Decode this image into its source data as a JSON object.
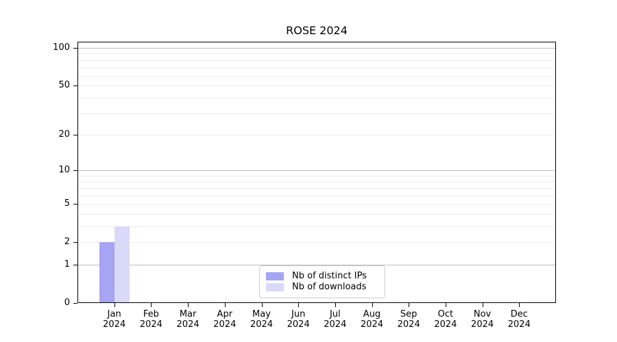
{
  "chart_data": {
    "type": "bar",
    "title": "ROSE 2024",
    "categories": [
      "Jan 2024",
      "Feb 2024",
      "Mar 2024",
      "Apr 2024",
      "May 2024",
      "Jun 2024",
      "Jul 2024",
      "Aug 2024",
      "Sep 2024",
      "Oct 2024",
      "Nov 2024",
      "Dec 2024"
    ],
    "series": [
      {
        "name": "Nb of distinct IPs",
        "color": "#a5a5f4",
        "values": [
          2,
          0,
          0,
          0,
          0,
          0,
          0,
          0,
          0,
          0,
          0,
          0
        ]
      },
      {
        "name": "Nb of downloads",
        "color": "#d9d9f8",
        "values": [
          3,
          0,
          0,
          0,
          0,
          0,
          0,
          0,
          0,
          0,
          0,
          0
        ]
      }
    ],
    "y_axis": {
      "scale": "log10(value+1)",
      "tick_values": [
        0,
        1,
        2,
        5,
        10,
        20,
        50,
        100
      ],
      "major_gridlines": [
        1,
        10,
        100
      ],
      "minor_gridlines": [
        2,
        3,
        4,
        5,
        6,
        7,
        8,
        9,
        20,
        30,
        40,
        50,
        60,
        70,
        80,
        90
      ],
      "range": [
        0,
        100
      ]
    },
    "xlabel": "",
    "ylabel": "",
    "grid": true,
    "legend": {
      "position": "lower center (inside plot)"
    }
  },
  "colors": {
    "background": "#ffffff",
    "axis": "#000000",
    "text": "#000000",
    "major_grid": "#bcbcbc",
    "minor_grid": "#ececec",
    "legend_border": "#cccccc"
  }
}
